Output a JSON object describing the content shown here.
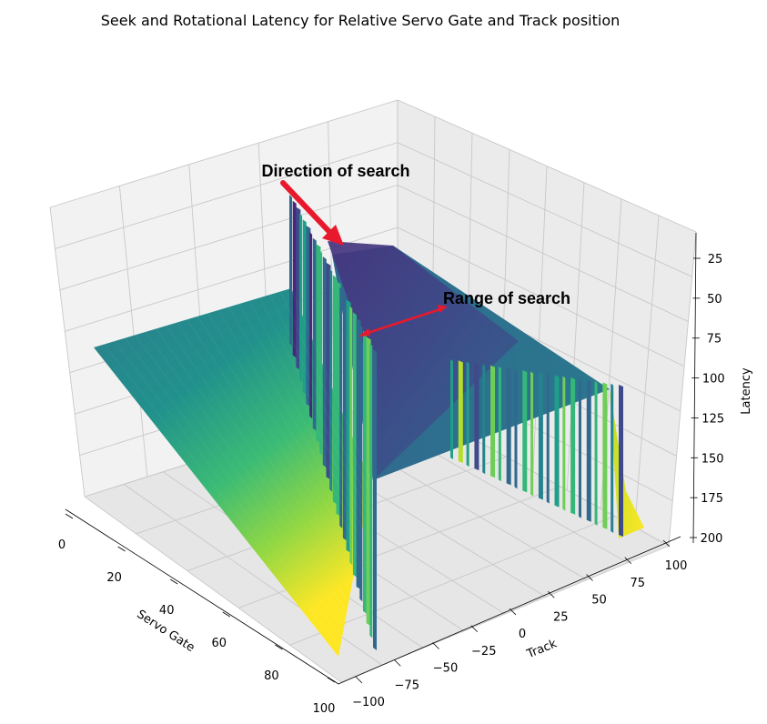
{
  "chart_data": {
    "type": "surface3d",
    "title": "Seek and Rotational Latency for Relative Servo Gate and Track position",
    "xlabel": "Servo Gate",
    "ylabel": "Track",
    "zlabel": "Latency",
    "xlim": [
      0,
      100
    ],
    "ylim": [
      -100,
      100
    ],
    "zlim": [
      200,
      25
    ],
    "x_ticks": [
      "0",
      "20",
      "40",
      "60",
      "80",
      "100"
    ],
    "y_ticks": [
      "−100",
      "−75",
      "−50",
      "−25",
      "0",
      "25",
      "50",
      "75",
      "100"
    ],
    "z_ticks": [
      "25",
      "50",
      "75",
      "100",
      "125",
      "150",
      "175",
      "200"
    ],
    "colormap": "viridis",
    "grid": true,
    "annotations": [
      {
        "text": "Direction of search",
        "arrow_color": "#e8192c"
      },
      {
        "text": "Range of search",
        "arrow_color": "#e8192c"
      }
    ]
  }
}
